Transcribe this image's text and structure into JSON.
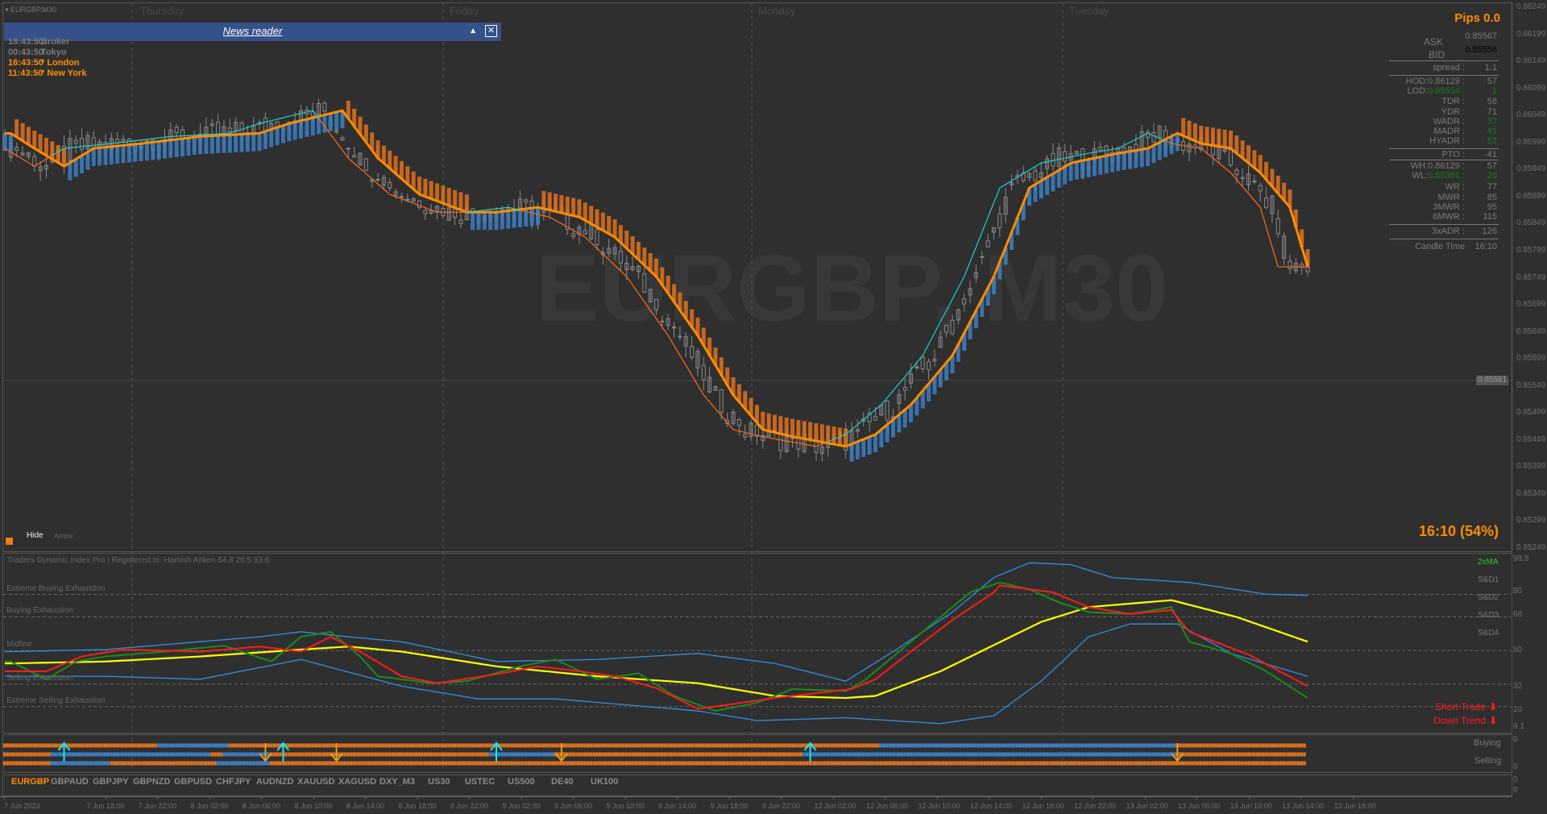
{
  "window": {
    "title": "EURGBP,M30",
    "watermark": "EURGBP, M30"
  },
  "day_labels": [
    "Thursday",
    "Friday",
    "Monday",
    "Tuesday"
  ],
  "news_reader": {
    "title": "News reader",
    "collapse_icon": "triangle-up-icon",
    "close_icon": "close-box-icon"
  },
  "clocks": [
    {
      "time": "18:43:50",
      "label": "Broker",
      "color": "#7a7a7a"
    },
    {
      "time": "00:43:50",
      "label": "Tokyo",
      "color": "#7a7a7a"
    },
    {
      "time": "16:43:50",
      "label": "* London",
      "color": "#ff8c00"
    },
    {
      "time": "11:43:50",
      "label": "* New York",
      "color": "#ff8c00"
    }
  ],
  "info_panel": {
    "pips": "Pips 0.0",
    "ask_label": "ASK",
    "ask": "0.85567",
    "bid_label": "BID",
    "bid": "0.85556",
    "rows": [
      {
        "label": "spread :",
        "value": "1.1"
      },
      {
        "label": "HOD:0.86129 :",
        "value": "57"
      },
      {
        "label": "LOD:",
        "price": "0.85554 :",
        "value": "1",
        "green": true
      },
      {
        "label": "TDR :",
        "value": "58"
      },
      {
        "label": "YDR :",
        "value": "71"
      },
      {
        "label": "WADR :",
        "value": "37",
        "green": true
      },
      {
        "label": "MADR :",
        "value": "41",
        "green": true
      },
      {
        "label": "HYADR :",
        "value": "52",
        "green": true
      },
      {
        "label": "PTO :",
        "value": "-41"
      },
      {
        "label": "WH:0.86129 :",
        "value": "57"
      },
      {
        "label": "WL:",
        "price": "0.85361 :",
        "value": "20",
        "green": true
      },
      {
        "label": "WR :",
        "value": "77"
      },
      {
        "label": "MWR :",
        "value": "85"
      },
      {
        "label": "3MWR :",
        "value": "95"
      },
      {
        "label": "6MWR :",
        "value": "115"
      },
      {
        "label": "3xADR :",
        "value": "126"
      },
      {
        "label": "Candle Time",
        "value": "16:10"
      }
    ],
    "candle_timer": "16:10 (54%)"
  },
  "controls": {
    "hide": "Hide",
    "arrow": "Arrow"
  },
  "price_axis": [
    "0.86249",
    "0.86199",
    "0.86149",
    "0.86099",
    "0.86049",
    "0.85999",
    "0.85949",
    "0.85899",
    "0.85849",
    "0.85799",
    "0.85749",
    "0.85699",
    "0.85649",
    "0.85599",
    "0.85549",
    "0.85499",
    "0.85449",
    "0.85399",
    "0.85349",
    "0.85299",
    "0.85249"
  ],
  "current_price": "0.85561",
  "main_chart": {
    "colors": {
      "bear": "#e0701c",
      "bull": "#3b7fc4",
      "slow_ma": "#ff8c00",
      "fast_up": "#19d4d4",
      "fast_down": "#ff6a1a",
      "candle": "#8a8a8a"
    },
    "slow_ma": [
      [
        1,
        0.86016
      ],
      [
        5,
        0.85988
      ],
      [
        10,
        0.85955
      ],
      [
        15,
        0.85988
      ],
      [
        23,
        0.85997
      ],
      [
        33,
        0.8601
      ],
      [
        43,
        0.86016
      ],
      [
        48,
        0.86034
      ],
      [
        57,
        0.86058
      ],
      [
        63,
        0.8597
      ],
      [
        70,
        0.85903
      ],
      [
        78,
        0.8587
      ],
      [
        83,
        0.8587
      ],
      [
        90,
        0.85879
      ],
      [
        97,
        0.85861
      ],
      [
        103,
        0.85824
      ],
      [
        110,
        0.85751
      ],
      [
        117,
        0.85642
      ],
      [
        123,
        0.85532
      ],
      [
        128,
        0.85468
      ],
      [
        133,
        0.85455
      ],
      [
        142,
        0.85437
      ],
      [
        147,
        0.85459
      ],
      [
        153,
        0.85514
      ],
      [
        160,
        0.85605
      ],
      [
        167,
        0.85751
      ],
      [
        173,
        0.85915
      ],
      [
        180,
        0.85961
      ],
      [
        188,
        0.85979
      ],
      [
        193,
        0.85988
      ],
      [
        198,
        0.86016
      ],
      [
        202,
        0.85997
      ],
      [
        207,
        0.85988
      ],
      [
        212,
        0.85943
      ],
      [
        217,
        0.85879
      ],
      [
        220,
        0.85769
      ]
    ]
  },
  "tdi": {
    "title": "Traders Dynamic Index Pro | Registered to: Hamish Aitken 54.8 26.5 33.6",
    "levels": [
      {
        "label": "Extreme Buying Exhaustion",
        "value": 80
      },
      {
        "label": "Buying Exhaustion",
        "value": 68
      },
      {
        "label": "Midline",
        "value": 50
      },
      {
        "label": "Selling Exhaustion",
        "value": 32
      },
      {
        "label": "Extreme Selling Exhaustion",
        "value": 20
      }
    ],
    "axis": [
      "98.8",
      "80",
      "68",
      "50",
      "32",
      "20",
      "9.1"
    ],
    "legend": [
      "2xMA",
      "S&D1",
      "S&D2",
      "S&D3",
      "S&D4"
    ],
    "alerts": [
      {
        "text": "Short Trade",
        "icon": "arrow-down-icon"
      },
      {
        "text": "Down Trend",
        "icon": "arrow-down-icon"
      }
    ],
    "series": {
      "upper_band": {
        "color": "#2f8fe8",
        "points": [
          [
            1,
            49.4
          ],
          [
            17,
            50.5
          ],
          [
            33,
            54.7
          ],
          [
            43,
            57.3
          ],
          [
            50,
            60.0
          ],
          [
            58,
            57.3
          ],
          [
            67,
            54.7
          ],
          [
            83,
            44.1
          ],
          [
            100,
            45.2
          ],
          [
            117,
            48.4
          ],
          [
            130,
            43.1
          ],
          [
            142,
            33.6
          ],
          [
            150,
            49.4
          ],
          [
            160,
            70.5
          ],
          [
            167,
            89.0
          ],
          [
            173,
            96.9
          ],
          [
            180,
            95.9
          ],
          [
            187,
            89.0
          ],
          [
            200,
            86.4
          ],
          [
            213,
            80.1
          ],
          [
            220,
            79.5
          ]
        ]
      },
      "lower_band": {
        "color": "#2f8fe8",
        "points": [
          [
            1,
            36.2
          ],
          [
            17,
            36.2
          ],
          [
            33,
            34.6
          ],
          [
            50,
            45.2
          ],
          [
            67,
            30.9
          ],
          [
            80,
            24.1
          ],
          [
            93,
            24.1
          ],
          [
            117,
            17.7
          ],
          [
            127,
            12.5
          ],
          [
            142,
            14.0
          ],
          [
            158,
            10.9
          ],
          [
            167,
            15.1
          ],
          [
            175,
            33.6
          ],
          [
            183,
            57.3
          ],
          [
            190,
            64.2
          ],
          [
            198,
            64.2
          ],
          [
            207,
            48.4
          ],
          [
            220,
            36.2
          ]
        ]
      },
      "market_base": {
        "color": "#ffff00",
        "points": [
          [
            1,
            43.1
          ],
          [
            17,
            44.1
          ],
          [
            33,
            46.8
          ],
          [
            50,
            50.5
          ],
          [
            58,
            52.1
          ],
          [
            67,
            49.4
          ],
          [
            83,
            41.5
          ],
          [
            100,
            36.2
          ],
          [
            117,
            32.5
          ],
          [
            130,
            25.7
          ],
          [
            142,
            24.6
          ],
          [
            147,
            25.7
          ],
          [
            158,
            38.9
          ],
          [
            175,
            65.3
          ],
          [
            183,
            73.2
          ],
          [
            197,
            76.9
          ],
          [
            208,
            67.9
          ],
          [
            220,
            54.7
          ]
        ]
      },
      "rsi_price": {
        "color": "#1a8a1a",
        "points": [
          [
            1,
            44.1
          ],
          [
            7,
            34.6
          ],
          [
            12,
            44.1
          ],
          [
            17,
            46.8
          ],
          [
            27,
            49.4
          ],
          [
            37,
            52.6
          ],
          [
            45,
            44.1
          ],
          [
            50,
            57.3
          ],
          [
            55,
            60.0
          ],
          [
            60,
            46.8
          ],
          [
            63,
            36.2
          ],
          [
            72,
            32.5
          ],
          [
            78,
            33.6
          ],
          [
            87,
            41.5
          ],
          [
            93,
            45.2
          ],
          [
            100,
            34.6
          ],
          [
            107,
            37.8
          ],
          [
            113,
            25.7
          ],
          [
            120,
            17.7
          ],
          [
            127,
            22.0
          ],
          [
            133,
            29.4
          ],
          [
            142,
            28.3
          ],
          [
            145,
            33.6
          ],
          [
            150,
            46.8
          ],
          [
            157,
            65.3
          ],
          [
            163,
            81.1
          ],
          [
            168,
            86.4
          ],
          [
            173,
            82.7
          ],
          [
            178,
            75.8
          ],
          [
            183,
            70.5
          ],
          [
            190,
            69.5
          ],
          [
            197,
            73.2
          ],
          [
            200,
            54.7
          ],
          [
            207,
            48.4
          ],
          [
            213,
            38.9
          ],
          [
            220,
            24.6
          ]
        ]
      },
      "trade_signal": {
        "color": "#ff1a1a",
        "points": [
          [
            1,
            38.9
          ],
          [
            7,
            38.9
          ],
          [
            13,
            46.8
          ],
          [
            20,
            50.5
          ],
          [
            33,
            49.4
          ],
          [
            43,
            52.1
          ],
          [
            50,
            49.4
          ],
          [
            55,
            57.3
          ],
          [
            60,
            49.4
          ],
          [
            67,
            36.2
          ],
          [
            73,
            32.5
          ],
          [
            83,
            37.3
          ],
          [
            90,
            41.5
          ],
          [
            97,
            38.9
          ],
          [
            103,
            36.2
          ],
          [
            110,
            29.9
          ],
          [
            117,
            18.8
          ],
          [
            123,
            21.4
          ],
          [
            130,
            24.6
          ],
          [
            137,
            27.2
          ],
          [
            143,
            29.4
          ],
          [
            147,
            34.6
          ],
          [
            153,
            49.4
          ],
          [
            160,
            66.3
          ],
          [
            167,
            81.1
          ],
          [
            168,
            84.8
          ],
          [
            177,
            81.1
          ],
          [
            183,
            73.2
          ],
          [
            190,
            69.5
          ],
          [
            197,
            71.6
          ],
          [
            200,
            60.0
          ],
          [
            210,
            47.8
          ],
          [
            220,
            30.9
          ]
        ]
      }
    }
  },
  "signals": {
    "labels": [
      "Buying",
      "Selling"
    ],
    "axis": [
      "0",
      "0"
    ],
    "rows": [
      [
        [
          "o",
          0,
          26
        ],
        [
          "b",
          26,
          38
        ],
        [
          "o",
          38,
          148
        ],
        [
          "b",
          148,
          198
        ],
        [
          "o",
          198,
          220
        ]
      ],
      [
        [
          "o",
          0,
          8
        ],
        [
          "b",
          8,
          35
        ],
        [
          "o",
          35,
          37
        ],
        [
          "b",
          37,
          45
        ],
        [
          "o",
          45,
          82
        ],
        [
          "b",
          82,
          93
        ],
        [
          "o",
          93,
          135
        ],
        [
          "b",
          135,
          198
        ],
        [
          "o",
          198,
          220
        ]
      ],
      [
        [
          "o",
          0,
          8
        ],
        [
          "b",
          8,
          18
        ],
        [
          "o",
          18,
          36
        ],
        [
          "b",
          36,
          45
        ],
        [
          "o",
          45,
          220
        ]
      ]
    ],
    "up_arrows": [
      10,
      47,
      83,
      136
    ],
    "down_arrows": [
      44,
      56,
      94,
      198
    ]
  },
  "symbol_tabs": {
    "active": "EURGBP",
    "items": [
      "EURGBP",
      "GBPAUD",
      "GBPJPY",
      "GBPNZD",
      "GBPUSD",
      "CHFJPY",
      "AUDNZD",
      "XAUUSD",
      "XAGUSD",
      "DXY_M3",
      "US30",
      "USTEC",
      "US500",
      "DE40",
      "UK100"
    ],
    "axis": [
      "0",
      "0"
    ]
  },
  "time_axis": [
    "7 Jun 2023",
    "7 Jun 18:00",
    "7 Jun 22:00",
    "8 Jun 02:00",
    "8 Jun 06:00",
    "8 Jun 10:00",
    "8 Jun 14:00",
    "8 Jun 18:00",
    "8 Jun 22:00",
    "9 Jun 02:00",
    "9 Jun 06:00",
    "9 Jun 10:00",
    "9 Jun 14:00",
    "9 Jun 18:00",
    "9 Jun 22:00",
    "12 Jun 02:00",
    "12 Jun 06:00",
    "12 Jun 10:00",
    "12 Jun 14:00",
    "12 Jun 18:00",
    "12 Jun 22:00",
    "13 Jun 02:00",
    "13 Jun 06:00",
    "13 Jun 10:00",
    "13 Jun 14:00",
    "13 Jun 18:00"
  ]
}
